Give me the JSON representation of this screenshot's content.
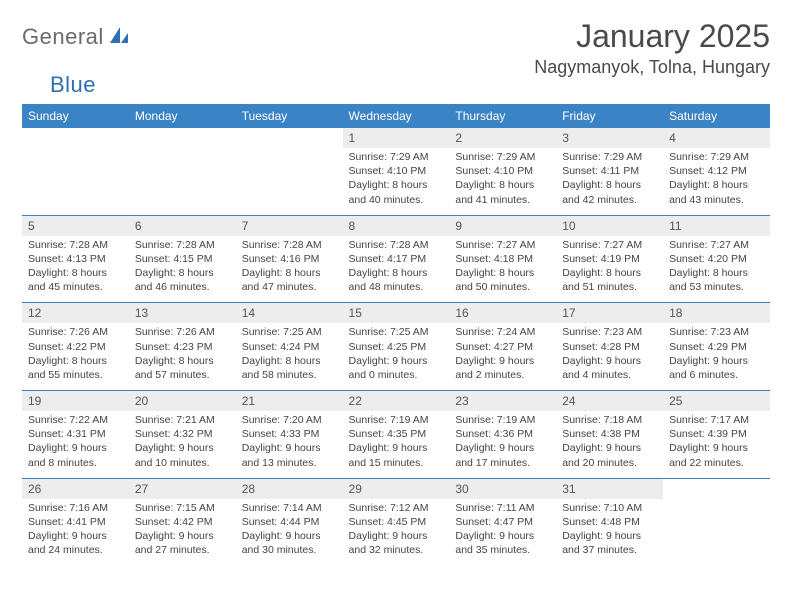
{
  "brand": {
    "part1": "General",
    "part2": "Blue"
  },
  "title": "January 2025",
  "location": "Nagymanyok, Tolna, Hungary",
  "day_headers": [
    "Sunday",
    "Monday",
    "Tuesday",
    "Wednesday",
    "Thursday",
    "Friday",
    "Saturday"
  ],
  "colors": {
    "header_bg": "#3a84c5",
    "header_text": "#ffffff",
    "daynum_bg": "#ededed",
    "rule": "#3a84c5",
    "text": "#444444",
    "title_text": "#4a4a4a"
  },
  "typography": {
    "title_fontsize_pt": 24,
    "location_fontsize_pt": 14,
    "header_fontsize_pt": 9,
    "body_fontsize_pt": 8
  },
  "weeks": [
    [
      null,
      null,
      null,
      {
        "n": "1",
        "sunrise": "7:29 AM",
        "sunset": "4:10 PM",
        "dl1": "8 hours",
        "dl2": "and 40 minutes."
      },
      {
        "n": "2",
        "sunrise": "7:29 AM",
        "sunset": "4:10 PM",
        "dl1": "8 hours",
        "dl2": "and 41 minutes."
      },
      {
        "n": "3",
        "sunrise": "7:29 AM",
        "sunset": "4:11 PM",
        "dl1": "8 hours",
        "dl2": "and 42 minutes."
      },
      {
        "n": "4",
        "sunrise": "7:29 AM",
        "sunset": "4:12 PM",
        "dl1": "8 hours",
        "dl2": "and 43 minutes."
      }
    ],
    [
      {
        "n": "5",
        "sunrise": "7:28 AM",
        "sunset": "4:13 PM",
        "dl1": "8 hours",
        "dl2": "and 45 minutes."
      },
      {
        "n": "6",
        "sunrise": "7:28 AM",
        "sunset": "4:15 PM",
        "dl1": "8 hours",
        "dl2": "and 46 minutes."
      },
      {
        "n": "7",
        "sunrise": "7:28 AM",
        "sunset": "4:16 PM",
        "dl1": "8 hours",
        "dl2": "and 47 minutes."
      },
      {
        "n": "8",
        "sunrise": "7:28 AM",
        "sunset": "4:17 PM",
        "dl1": "8 hours",
        "dl2": "and 48 minutes."
      },
      {
        "n": "9",
        "sunrise": "7:27 AM",
        "sunset": "4:18 PM",
        "dl1": "8 hours",
        "dl2": "and 50 minutes."
      },
      {
        "n": "10",
        "sunrise": "7:27 AM",
        "sunset": "4:19 PM",
        "dl1": "8 hours",
        "dl2": "and 51 minutes."
      },
      {
        "n": "11",
        "sunrise": "7:27 AM",
        "sunset": "4:20 PM",
        "dl1": "8 hours",
        "dl2": "and 53 minutes."
      }
    ],
    [
      {
        "n": "12",
        "sunrise": "7:26 AM",
        "sunset": "4:22 PM",
        "dl1": "8 hours",
        "dl2": "and 55 minutes."
      },
      {
        "n": "13",
        "sunrise": "7:26 AM",
        "sunset": "4:23 PM",
        "dl1": "8 hours",
        "dl2": "and 57 minutes."
      },
      {
        "n": "14",
        "sunrise": "7:25 AM",
        "sunset": "4:24 PM",
        "dl1": "8 hours",
        "dl2": "and 58 minutes."
      },
      {
        "n": "15",
        "sunrise": "7:25 AM",
        "sunset": "4:25 PM",
        "dl1": "9 hours",
        "dl2": "and 0 minutes."
      },
      {
        "n": "16",
        "sunrise": "7:24 AM",
        "sunset": "4:27 PM",
        "dl1": "9 hours",
        "dl2": "and 2 minutes."
      },
      {
        "n": "17",
        "sunrise": "7:23 AM",
        "sunset": "4:28 PM",
        "dl1": "9 hours",
        "dl2": "and 4 minutes."
      },
      {
        "n": "18",
        "sunrise": "7:23 AM",
        "sunset": "4:29 PM",
        "dl1": "9 hours",
        "dl2": "and 6 minutes."
      }
    ],
    [
      {
        "n": "19",
        "sunrise": "7:22 AM",
        "sunset": "4:31 PM",
        "dl1": "9 hours",
        "dl2": "and 8 minutes."
      },
      {
        "n": "20",
        "sunrise": "7:21 AM",
        "sunset": "4:32 PM",
        "dl1": "9 hours",
        "dl2": "and 10 minutes."
      },
      {
        "n": "21",
        "sunrise": "7:20 AM",
        "sunset": "4:33 PM",
        "dl1": "9 hours",
        "dl2": "and 13 minutes."
      },
      {
        "n": "22",
        "sunrise": "7:19 AM",
        "sunset": "4:35 PM",
        "dl1": "9 hours",
        "dl2": "and 15 minutes."
      },
      {
        "n": "23",
        "sunrise": "7:19 AM",
        "sunset": "4:36 PM",
        "dl1": "9 hours",
        "dl2": "and 17 minutes."
      },
      {
        "n": "24",
        "sunrise": "7:18 AM",
        "sunset": "4:38 PM",
        "dl1": "9 hours",
        "dl2": "and 20 minutes."
      },
      {
        "n": "25",
        "sunrise": "7:17 AM",
        "sunset": "4:39 PM",
        "dl1": "9 hours",
        "dl2": "and 22 minutes."
      }
    ],
    [
      {
        "n": "26",
        "sunrise": "7:16 AM",
        "sunset": "4:41 PM",
        "dl1": "9 hours",
        "dl2": "and 24 minutes."
      },
      {
        "n": "27",
        "sunrise": "7:15 AM",
        "sunset": "4:42 PM",
        "dl1": "9 hours",
        "dl2": "and 27 minutes."
      },
      {
        "n": "28",
        "sunrise": "7:14 AM",
        "sunset": "4:44 PM",
        "dl1": "9 hours",
        "dl2": "and 30 minutes."
      },
      {
        "n": "29",
        "sunrise": "7:12 AM",
        "sunset": "4:45 PM",
        "dl1": "9 hours",
        "dl2": "and 32 minutes."
      },
      {
        "n": "30",
        "sunrise": "7:11 AM",
        "sunset": "4:47 PM",
        "dl1": "9 hours",
        "dl2": "and 35 minutes."
      },
      {
        "n": "31",
        "sunrise": "7:10 AM",
        "sunset": "4:48 PM",
        "dl1": "9 hours",
        "dl2": "and 37 minutes."
      },
      null
    ]
  ]
}
